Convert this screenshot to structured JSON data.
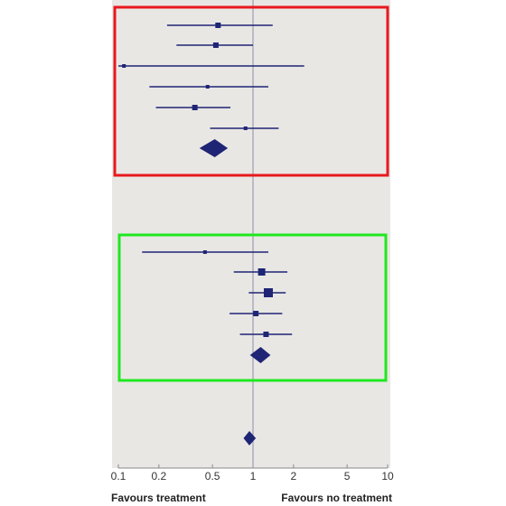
{
  "chart_data": {
    "type": "forest",
    "xscale": "log",
    "xlim": [
      0.1,
      10
    ],
    "xticks": [
      0.1,
      0.2,
      0.5,
      1,
      2,
      5,
      10
    ],
    "xtick_labels": [
      "0.1",
      "0.2",
      "0.5",
      "1",
      "2",
      "5",
      "10"
    ],
    "reference_line": 1,
    "grid": false,
    "left_label": "Favours treatment",
    "right_label": "Favours no treatment",
    "groups": [
      {
        "box_color": "#e8191e",
        "studies": [
          {
            "estimate": 0.55,
            "ci": [
              0.23,
              1.4
            ],
            "weight": "small"
          },
          {
            "estimate": 0.53,
            "ci": [
              0.27,
              1.0
            ],
            "weight": "small"
          },
          {
            "estimate": 0.11,
            "ci": [
              0.1,
              2.4
            ],
            "weight": "tiny"
          },
          {
            "estimate": 0.46,
            "ci": [
              0.17,
              1.3
            ],
            "weight": "tiny"
          },
          {
            "estimate": 0.37,
            "ci": [
              0.19,
              0.68
            ],
            "weight": "small"
          },
          {
            "estimate": 0.88,
            "ci": [
              0.48,
              1.55
            ],
            "weight": "tiny"
          }
        ],
        "pooled": {
          "estimate": 0.52,
          "ci": [
            0.4,
            0.65
          ]
        }
      },
      {
        "box_color": "#1fe81f",
        "studies": [
          {
            "estimate": 0.44,
            "ci": [
              0.15,
              1.3
            ],
            "weight": "tiny"
          },
          {
            "estimate": 1.16,
            "ci": [
              0.72,
              1.8
            ],
            "weight": "medium"
          },
          {
            "estimate": 1.3,
            "ci": [
              0.93,
              1.75
            ],
            "weight": "large"
          },
          {
            "estimate": 1.05,
            "ci": [
              0.67,
              1.65
            ],
            "weight": "small"
          },
          {
            "estimate": 1.25,
            "ci": [
              0.8,
              1.95
            ],
            "weight": "small"
          }
        ],
        "pooled": {
          "estimate": 1.14,
          "ci": [
            0.95,
            1.35
          ]
        }
      }
    ],
    "overall": {
      "estimate": 0.94,
      "ci": [
        0.85,
        1.05
      ]
    }
  }
}
